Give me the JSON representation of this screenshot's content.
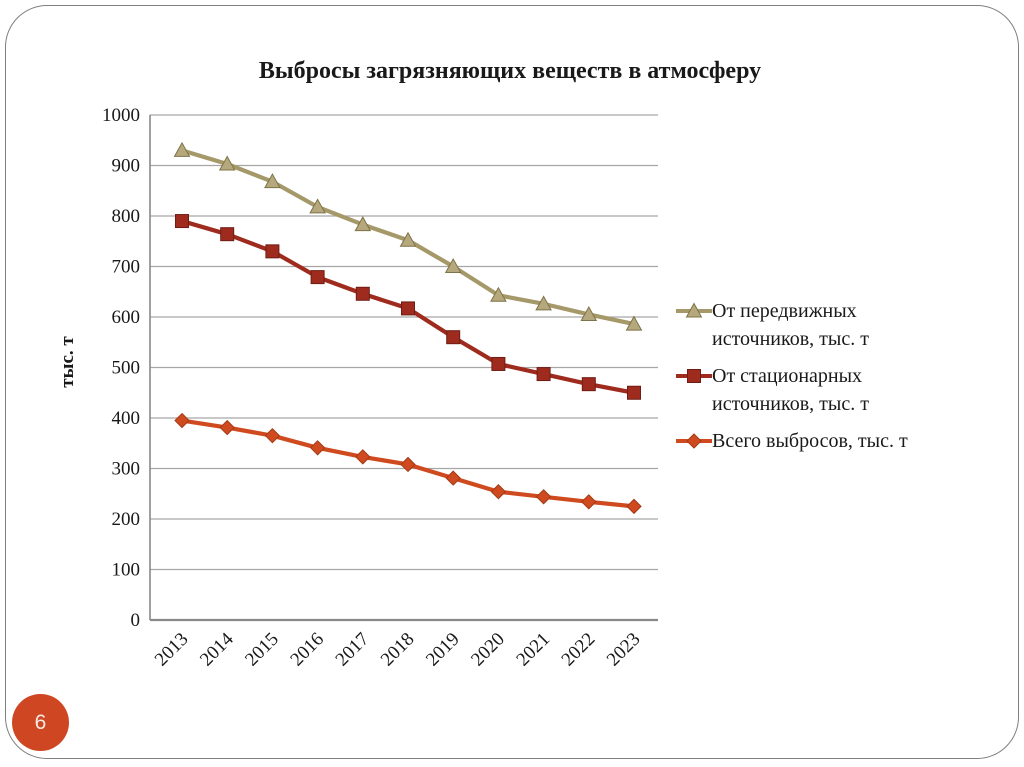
{
  "slide": {
    "page_number": "6",
    "badge_color": "#ce4722",
    "border_color": "#7f7f7f"
  },
  "chart_data": {
    "type": "line",
    "title": "Выбросы загрязняющих веществ в атмосферу",
    "ylabel": "тыс. т",
    "xlabel": "",
    "ylim": [
      0,
      1000
    ],
    "ytick_step": 100,
    "grid": true,
    "legend_position": "right",
    "gridline_color": "#a6a6a6",
    "axis_color": "#898989",
    "categories": [
      "2013",
      "2014",
      "2015",
      "2016",
      "2017",
      "2018",
      "2019",
      "2020",
      "2021",
      "2022",
      "2023"
    ],
    "series": [
      {
        "name": "От передвижных источников, тыс. т",
        "marker": "triangle",
        "color": "#a59869",
        "marker_fill": "#b5a87c",
        "marker_stroke": "#7e7248",
        "values": [
          930,
          903,
          868,
          818,
          783,
          752,
          700,
          643,
          626,
          605,
          586
        ]
      },
      {
        "name": "От стационарных источников, тыс. т",
        "marker": "square",
        "color": "#9e2b1e",
        "marker_fill": "#9e2b1e",
        "marker_stroke": "#6e1d14",
        "values": [
          790,
          764,
          730,
          679,
          646,
          617,
          560,
          507,
          487,
          467,
          450
        ]
      },
      {
        "name": "Всего выбросов, тыс. т",
        "marker": "diamond",
        "color": "#cf4a1e",
        "marker_fill": "#cf4a1e",
        "marker_stroke": "#a33a15",
        "values": [
          395,
          381,
          365,
          341,
          323,
          308,
          281,
          254,
          244,
          234,
          225
        ]
      }
    ]
  }
}
